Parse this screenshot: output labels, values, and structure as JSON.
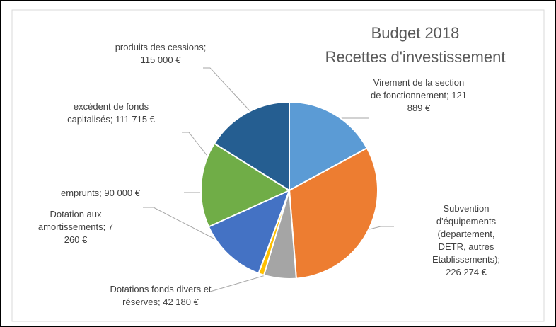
{
  "chart_data": {
    "type": "pie",
    "title": "Budget 2018",
    "subtitle": "Recettes d'investissement",
    "values": [
      121889,
      226274,
      42180,
      7260,
      90000,
      111715,
      115000
    ],
    "value_labels": [
      "Virement de la section de fonctionnement; 121 889 €",
      "Subvention d'équipements (departement, DETR, autres Etablissements); 226 274 €",
      "Dotations fonds divers et réserves; 42 180 €",
      "Dotation aux amortissements; 7 260 €",
      "emprunts; 90 000 €",
      "excédent de fonds capitalisés; 111 715 €",
      "produits des cessions; 115 000 €"
    ],
    "colors": [
      "#5b9bd5",
      "#ed7d31",
      "#a5a5a5",
      "#ffc000",
      "#4472c4",
      "#70ad47",
      "#255e91"
    ]
  }
}
